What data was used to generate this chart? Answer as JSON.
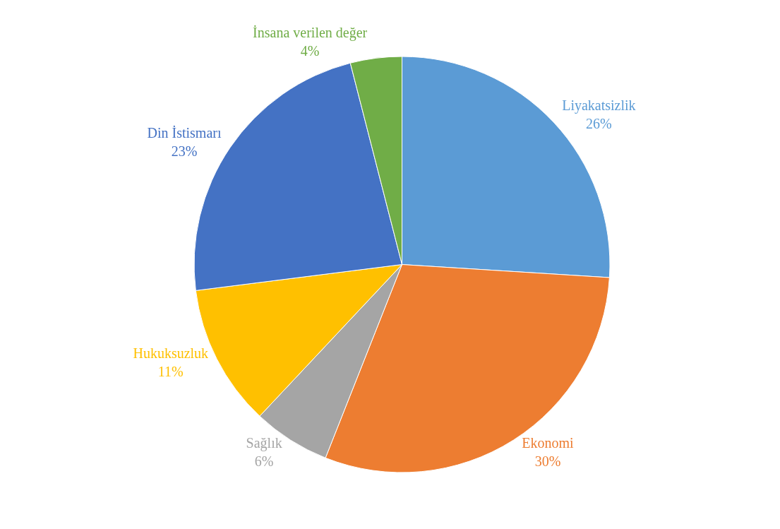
{
  "chart_data": {
    "type": "pie",
    "categories": [
      "Liyakatsizlik",
      "Ekonomi",
      "Sağlık",
      "Hukuksuzluk",
      "Din İstismarı",
      "İnsana verilen değer"
    ],
    "values": [
      26,
      30,
      6,
      11,
      23,
      4
    ],
    "value_labels": [
      "26%",
      "30%",
      "6%",
      "11%",
      "23%",
      "4%"
    ],
    "colors": [
      "#5b9bd5",
      "#ed7d31",
      "#a5a5a5",
      "#ffc000",
      "#4472c4",
      "#70ad47"
    ],
    "legend": false
  }
}
